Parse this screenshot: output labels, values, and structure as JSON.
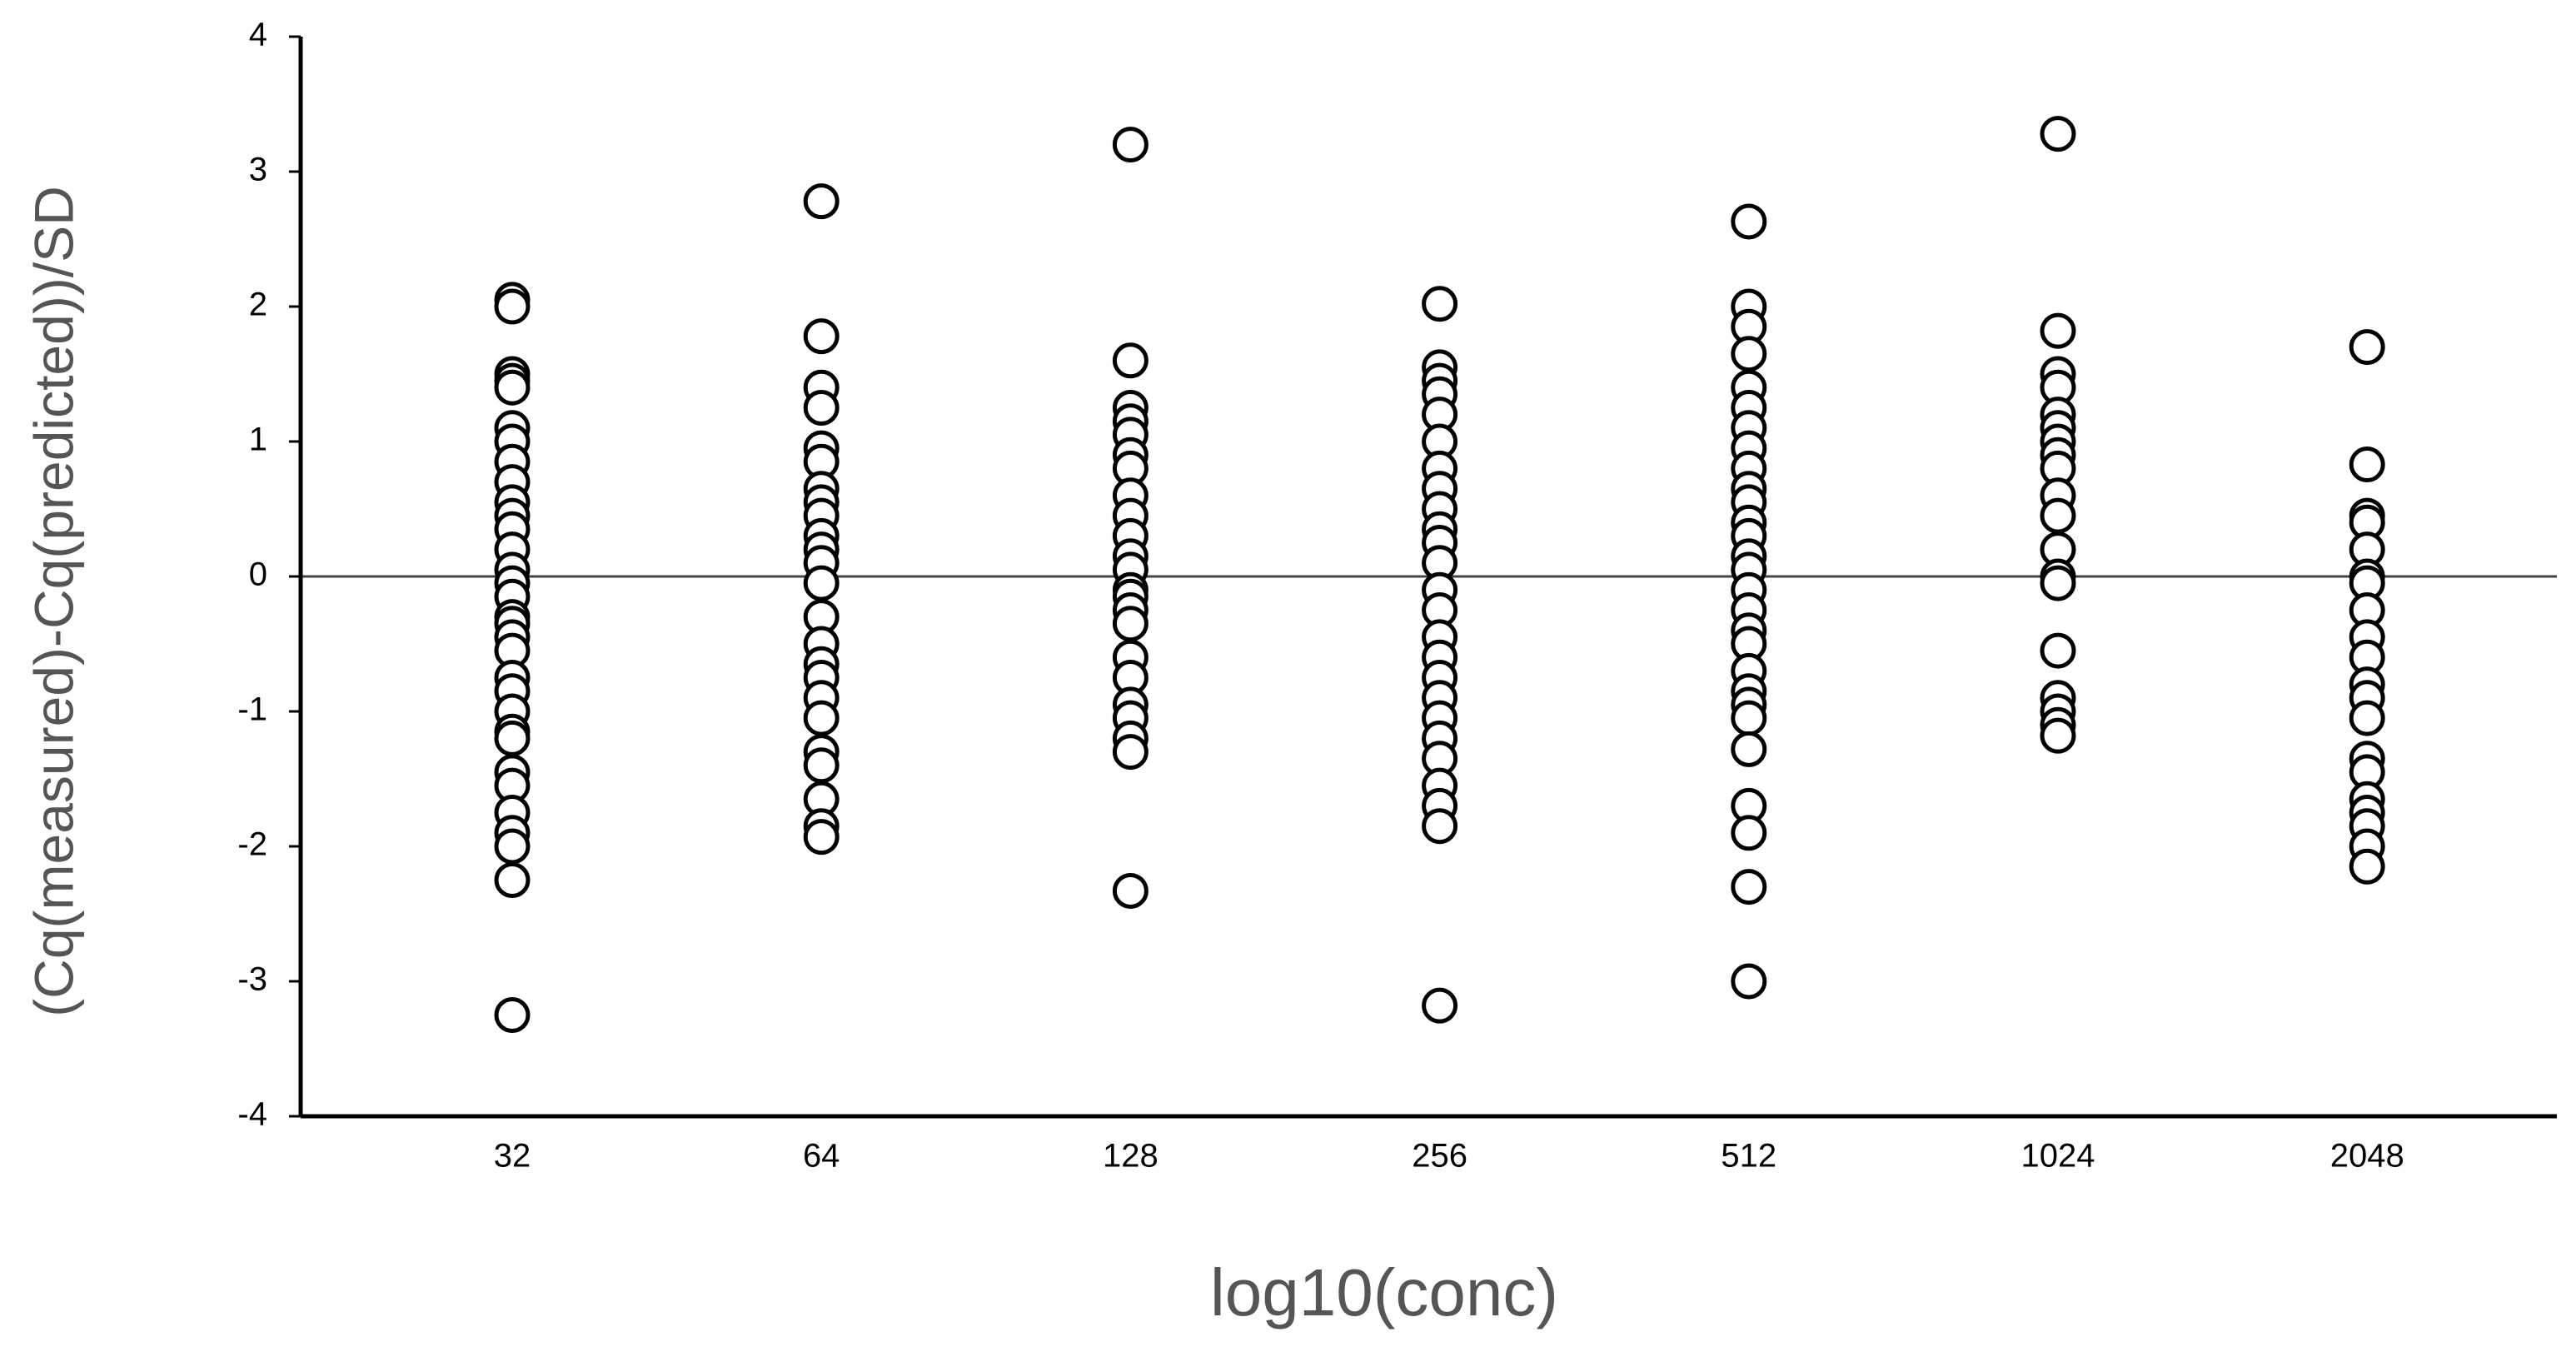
{
  "chart_data": {
    "type": "strip",
    "x_label": "log10(conc)",
    "y_label": "(Cq(measured)-Cq(predicted))/SD",
    "categories": [
      "32",
      "64",
      "128",
      "256",
      "512",
      "1024",
      "2048"
    ],
    "values": [
      [
        2.05,
        2.0,
        1.5,
        1.45,
        1.4,
        1.1,
        1.0,
        0.85,
        0.7,
        0.55,
        0.45,
        0.35,
        0.2,
        0.05,
        -0.05,
        -0.15,
        -0.3,
        -0.35,
        -0.45,
        -0.55,
        -0.75,
        -0.85,
        -1.0,
        -1.15,
        -1.2,
        -1.45,
        -1.55,
        -1.75,
        -1.9,
        -2.0,
        -2.25,
        -3.25
      ],
      [
        2.78,
        1.78,
        1.4,
        1.25,
        0.95,
        0.85,
        0.65,
        0.55,
        0.45,
        0.3,
        0.2,
        0.1,
        -0.05,
        -0.3,
        -0.5,
        -0.65,
        -0.75,
        -0.9,
        -1.05,
        -1.3,
        -1.4,
        -1.65,
        -1.85,
        -1.93
      ],
      [
        3.2,
        1.6,
        1.25,
        1.15,
        1.05,
        0.9,
        0.8,
        0.6,
        0.45,
        0.3,
        0.15,
        0.05,
        -0.1,
        -0.15,
        -0.25,
        -0.35,
        -0.6,
        -0.75,
        -0.95,
        -1.05,
        -1.2,
        -1.3,
        -2.33
      ],
      [
        2.02,
        1.55,
        1.45,
        1.35,
        1.2,
        1.0,
        0.8,
        0.65,
        0.5,
        0.35,
        0.25,
        0.1,
        -0.1,
        -0.25,
        -0.45,
        -0.6,
        -0.75,
        -0.9,
        -1.05,
        -1.2,
        -1.35,
        -1.55,
        -1.7,
        -1.85,
        -3.18
      ],
      [
        2.63,
        2.0,
        1.85,
        1.65,
        1.4,
        1.25,
        1.1,
        0.95,
        0.8,
        0.65,
        0.55,
        0.4,
        0.3,
        0.15,
        0.05,
        -0.1,
        -0.25,
        -0.4,
        -0.5,
        -0.7,
        -0.85,
        -0.95,
        -1.05,
        -1.28,
        -1.7,
        -1.9,
        -2.3,
        -3.0
      ],
      [
        3.28,
        1.82,
        1.5,
        1.4,
        1.2,
        1.1,
        1.0,
        0.9,
        0.8,
        0.6,
        0.45,
        0.2,
        0.0,
        -0.05,
        -0.55,
        -0.9,
        -1.0,
        -1.1,
        -1.18
      ],
      [
        1.7,
        0.83,
        0.45,
        0.4,
        0.2,
        0.0,
        -0.05,
        -0.25,
        -0.45,
        -0.6,
        -0.8,
        -0.9,
        -1.05,
        -1.35,
        -1.45,
        -1.65,
        -1.75,
        -1.85,
        -2.0,
        -2.15
      ]
    ],
    "marker_color": "#000000",
    "marker_fill": "#ffffff",
    "reference_line": 0,
    "ylim": [
      -4,
      4
    ],
    "yticks": [
      -4,
      -3,
      -2,
      -1,
      0,
      1,
      2,
      3,
      4
    ]
  }
}
